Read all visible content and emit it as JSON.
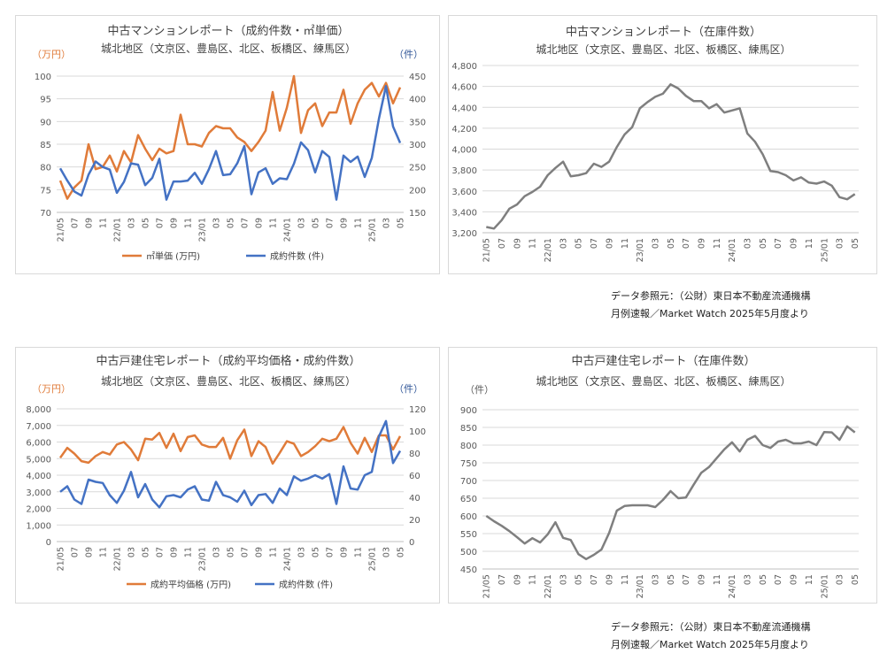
{
  "chart_data": [
    {
      "type": "line",
      "title": "中古マンションレポート（成約件数・㎡単価）",
      "subtitle": "城北地区（文京区、豊島区、北区、板橋区、練馬区）",
      "y_left_unit": "（万円）",
      "y_right_unit": "（件）",
      "x": [
        "21/05",
        "06",
        "07",
        "08",
        "09",
        "10",
        "11",
        "12",
        "22/01",
        "02",
        "03",
        "04",
        "05",
        "06",
        "07",
        "08",
        "09",
        "10",
        "11",
        "12",
        "23/01",
        "02",
        "03",
        "04",
        "05",
        "06",
        "07",
        "08",
        "09",
        "10",
        "11",
        "12",
        "24/01",
        "02",
        "03",
        "04",
        "05",
        "06",
        "07",
        "08",
        "09",
        "10",
        "11",
        "12",
        "25/01",
        "02",
        "03",
        "04",
        "05"
      ],
      "x_tick_labels": [
        "21/05",
        "07",
        "09",
        "11",
        "22/01",
        "03",
        "05",
        "07",
        "09",
        "11",
        "23/01",
        "03",
        "05",
        "07",
        "09",
        "11",
        "24/01",
        "03",
        "05",
        "07",
        "09",
        "11",
        "25/01",
        "03",
        "05"
      ],
      "ylim_left": [
        70,
        100
      ],
      "y_ticks_left": [
        "70",
        "75",
        "80",
        "85",
        "90",
        "95",
        "100"
      ],
      "ylim_right": [
        150,
        450
      ],
      "y_ticks_right": [
        "150",
        "200",
        "250",
        "300",
        "350",
        "400",
        "450"
      ],
      "legend_position": "bottom",
      "series": [
        {
          "name": "㎡単価 (万円)",
          "axis": "left",
          "color": "#E07B39",
          "values": [
            77,
            73,
            75.5,
            77,
            85,
            79.5,
            80,
            82.5,
            79,
            83.5,
            81,
            87,
            84,
            81.5,
            84,
            83,
            83.5,
            91.5,
            85,
            85,
            84.5,
            87.5,
            89,
            88.5,
            88.5,
            86.5,
            85.5,
            83.5,
            85.5,
            88,
            96.5,
            88,
            93,
            100,
            87.5,
            92.5,
            94,
            89,
            92,
            92,
            97,
            89.5,
            94,
            97,
            98.5,
            95.5,
            98.5,
            94,
            97.5
          ]
        },
        {
          "name": "成約件数 (件)",
          "axis": "right",
          "color": "#4472C4",
          "values": [
            247,
            220,
            196,
            187,
            233,
            262,
            250,
            244,
            193,
            217,
            258,
            255,
            210,
            226,
            268,
            178,
            218,
            218,
            220,
            237,
            213,
            245,
            285,
            232,
            234,
            258,
            296,
            190,
            238,
            247,
            213,
            225,
            223,
            257,
            304,
            287,
            238,
            285,
            272,
            178,
            275,
            261,
            273,
            228,
            270,
            356,
            428,
            339,
            303
          ]
        }
      ]
    },
    {
      "type": "line",
      "title": "中古マンションレポート（在庫件数）",
      "subtitle": "城北地区（文京区、豊島区、北区、板橋区、練馬区）",
      "x": [
        "21/05",
        "06",
        "07",
        "08",
        "09",
        "10",
        "11",
        "12",
        "22/01",
        "02",
        "03",
        "04",
        "05",
        "06",
        "07",
        "08",
        "09",
        "10",
        "11",
        "12",
        "23/01",
        "02",
        "03",
        "04",
        "05",
        "06",
        "07",
        "08",
        "09",
        "10",
        "11",
        "12",
        "24/01",
        "02",
        "03",
        "04",
        "05",
        "06",
        "07",
        "08",
        "09",
        "10",
        "11",
        "12",
        "25/01",
        "02",
        "03",
        "04",
        "05"
      ],
      "x_tick_labels": [
        "21/05",
        "07",
        "09",
        "11",
        "22/01",
        "03",
        "05",
        "07",
        "09",
        "11",
        "23/01",
        "03",
        "05",
        "07",
        "09",
        "11",
        "24/01",
        "03",
        "05",
        "07",
        "09",
        "11",
        "25/01",
        "03",
        "05"
      ],
      "ylim": [
        3200,
        4800
      ],
      "y_ticks": [
        "3,200",
        "3,400",
        "3,600",
        "3,800",
        "4,000",
        "4,200",
        "4,400",
        "4,600",
        "4,800"
      ],
      "series": [
        {
          "color": "#7F7F7F",
          "values": [
            3255,
            3240,
            3320,
            3430,
            3470,
            3550,
            3590,
            3640,
            3750,
            3820,
            3880,
            3740,
            3750,
            3770,
            3860,
            3830,
            3880,
            4020,
            4140,
            4210,
            4390,
            4450,
            4500,
            4530,
            4620,
            4580,
            4510,
            4460,
            4460,
            4390,
            4430,
            4350,
            4370,
            4390,
            4150,
            4070,
            3950,
            3790,
            3780,
            3750,
            3700,
            3730,
            3680,
            3670,
            3690,
            3650,
            3540,
            3520,
            3570
          ]
        }
      ]
    },
    {
      "type": "line",
      "title": "中古戸建住宅レポート（成約平均価格・成約件数）",
      "subtitle": "城北地区（文京区、豊島区、北区、板橋区、練馬区）",
      "y_left_unit": "（万円）",
      "y_right_unit": "（件）",
      "x": [
        "21/05",
        "06",
        "07",
        "08",
        "09",
        "10",
        "11",
        "12",
        "22/01",
        "02",
        "03",
        "04",
        "05",
        "06",
        "07",
        "08",
        "09",
        "10",
        "11",
        "12",
        "23/01",
        "02",
        "03",
        "04",
        "05",
        "06",
        "07",
        "08",
        "09",
        "10",
        "11",
        "12",
        "24/01",
        "02",
        "03",
        "04",
        "05",
        "06",
        "07",
        "08",
        "09",
        "10",
        "11",
        "12",
        "25/01",
        "02",
        "03",
        "04",
        "05"
      ],
      "x_tick_labels": [
        "21/05",
        "07",
        "09",
        "11",
        "22/01",
        "03",
        "05",
        "07",
        "09",
        "11",
        "23/01",
        "03",
        "05",
        "07",
        "09",
        "11",
        "24/01",
        "03",
        "05",
        "07",
        "09",
        "11",
        "25/01",
        "03",
        "05"
      ],
      "ylim_left": [
        0,
        8000
      ],
      "y_ticks_left": [
        "0",
        "1,000",
        "2,000",
        "3,000",
        "4,000",
        "5,000",
        "6,000",
        "7,000",
        "8,000"
      ],
      "ylim_right": [
        0,
        120
      ],
      "y_ticks_right": [
        "0",
        "20",
        "40",
        "60",
        "80",
        "100",
        "120"
      ],
      "legend_position": "bottom",
      "series": [
        {
          "name": "成約平均価格 (万円)",
          "axis": "left",
          "color": "#E07B39",
          "values": [
            5050,
            5650,
            5300,
            4850,
            4750,
            5150,
            5400,
            5250,
            5850,
            6000,
            5550,
            4900,
            6200,
            6150,
            6550,
            5650,
            6500,
            5450,
            6300,
            6400,
            5850,
            5700,
            5700,
            6250,
            5000,
            6100,
            6750,
            5150,
            6050,
            5700,
            4700,
            5350,
            6050,
            5900,
            5150,
            5400,
            5750,
            6200,
            6050,
            6200,
            6900,
            5950,
            5300,
            6250,
            5400,
            6400,
            6400,
            5550,
            6350
          ]
        },
        {
          "name": "成約件数 (件)",
          "axis": "right",
          "color": "#4472C4",
          "values": [
            45,
            50,
            38,
            34,
            56,
            54,
            53,
            42,
            35,
            46,
            63,
            40,
            52,
            38,
            31,
            41,
            42,
            40,
            47,
            50,
            38,
            37,
            54,
            42,
            40,
            36,
            46,
            33,
            42,
            43,
            35,
            48,
            42,
            59,
            55,
            57,
            60,
            57,
            61,
            34,
            68,
            48,
            47,
            60,
            63,
            95,
            109,
            71,
            82
          ]
        }
      ]
    },
    {
      "type": "line",
      "title": "中古戸建住宅レポート（在庫件数）",
      "subtitle": "城北地区（文京区、豊島区、北区、板橋区、練馬区）",
      "y_unit": "（件）",
      "x": [
        "21/05",
        "06",
        "07",
        "08",
        "09",
        "10",
        "11",
        "12",
        "22/01",
        "02",
        "03",
        "04",
        "05",
        "06",
        "07",
        "08",
        "09",
        "10",
        "11",
        "12",
        "23/01",
        "02",
        "03",
        "04",
        "05",
        "06",
        "07",
        "08",
        "09",
        "10",
        "11",
        "12",
        "24/01",
        "02",
        "03",
        "04",
        "05",
        "06",
        "07",
        "08",
        "09",
        "10",
        "11",
        "12",
        "25/01",
        "02",
        "03",
        "04",
        "05"
      ],
      "x_tick_labels": [
        "21/05",
        "07",
        "09",
        "11",
        "22/01",
        "03",
        "05",
        "07",
        "09",
        "11",
        "23/01",
        "03",
        "05",
        "07",
        "09",
        "11",
        "24/01",
        "03",
        "05",
        "07",
        "09",
        "11",
        "25/01",
        "03",
        "05"
      ],
      "ylim": [
        450,
        900
      ],
      "y_ticks": [
        "450",
        "500",
        "550",
        "600",
        "650",
        "700",
        "750",
        "800",
        "850",
        "900"
      ],
      "series": [
        {
          "color": "#7F7F7F",
          "values": [
            600,
            585,
            572,
            557,
            540,
            522,
            537,
            525,
            548,
            582,
            538,
            532,
            492,
            478,
            490,
            505,
            552,
            615,
            628,
            630,
            630,
            630,
            625,
            645,
            670,
            650,
            652,
            688,
            722,
            738,
            763,
            788,
            808,
            782,
            815,
            826,
            800,
            792,
            810,
            815,
            805,
            805,
            810,
            800,
            837,
            836,
            815,
            853,
            836
          ]
        }
      ]
    }
  ],
  "source_note": {
    "line1": "データ参照元：（公財）東日本不動産流通機構",
    "line2": "月例速報／Market Watch 2025年5月度より"
  }
}
